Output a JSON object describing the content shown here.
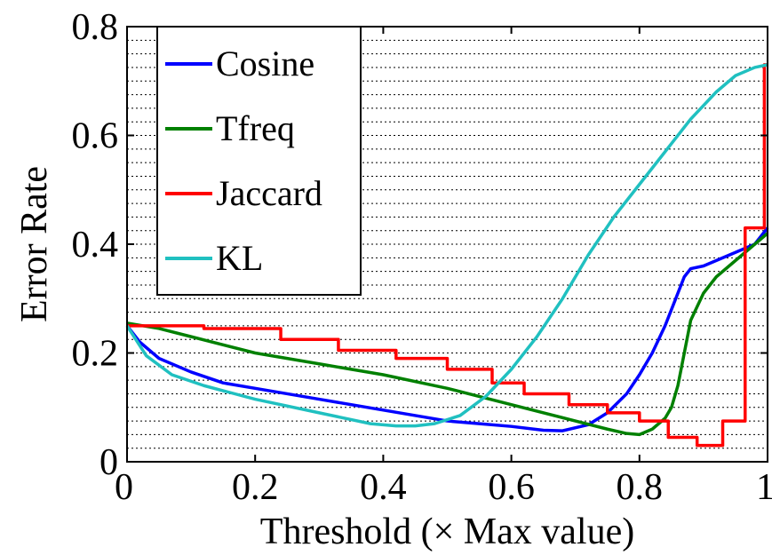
{
  "chart_data": {
    "type": "line",
    "title": "",
    "xlabel": "Threshold (×  Max value)",
    "ylabel": "Error Rate",
    "xlim": [
      0,
      1
    ],
    "ylim": [
      0,
      0.8
    ],
    "xticks": [
      "0",
      "0.2",
      "0.4",
      "0.6",
      "0.8",
      "1"
    ],
    "yticks": [
      "0",
      "0.2",
      "0.4",
      "0.6",
      "0.8"
    ],
    "grid": "horizontal dotted",
    "legend_position": "top-left",
    "series": [
      {
        "name": "Cosine",
        "color": "#0000ff",
        "step": false,
        "x": [
          0,
          0.02,
          0.05,
          0.1,
          0.15,
          0.2,
          0.3,
          0.4,
          0.5,
          0.55,
          0.6,
          0.65,
          0.68,
          0.72,
          0.75,
          0.78,
          0.8,
          0.82,
          0.84,
          0.86,
          0.87,
          0.88,
          0.9,
          0.92,
          0.94,
          0.96,
          0.98,
          1.0
        ],
        "y": [
          0.25,
          0.22,
          0.19,
          0.165,
          0.145,
          0.135,
          0.115,
          0.095,
          0.075,
          0.07,
          0.065,
          0.058,
          0.057,
          0.068,
          0.09,
          0.125,
          0.16,
          0.2,
          0.25,
          0.31,
          0.34,
          0.355,
          0.36,
          0.37,
          0.38,
          0.39,
          0.4,
          0.43
        ]
      },
      {
        "name": "Tfreq",
        "color": "#008000",
        "step": false,
        "x": [
          0,
          0.05,
          0.1,
          0.2,
          0.3,
          0.4,
          0.5,
          0.6,
          0.7,
          0.75,
          0.78,
          0.8,
          0.82,
          0.84,
          0.85,
          0.86,
          0.87,
          0.88,
          0.9,
          0.92,
          0.95,
          0.97,
          1.0
        ],
        "y": [
          0.255,
          0.245,
          0.23,
          0.2,
          0.18,
          0.16,
          0.135,
          0.105,
          0.075,
          0.06,
          0.052,
          0.05,
          0.06,
          0.08,
          0.1,
          0.14,
          0.2,
          0.26,
          0.31,
          0.34,
          0.37,
          0.39,
          0.42
        ]
      },
      {
        "name": "Jaccard",
        "color": "#ff0000",
        "step": true,
        "x": [
          0,
          0.12,
          0.24,
          0.33,
          0.42,
          0.5,
          0.57,
          0.62,
          0.69,
          0.75,
          0.8,
          0.845,
          0.89,
          0.93,
          0.965,
          0.995,
          1.0
        ],
        "y": [
          0.25,
          0.245,
          0.225,
          0.205,
          0.19,
          0.17,
          0.145,
          0.125,
          0.105,
          0.09,
          0.075,
          0.045,
          0.03,
          0.075,
          0.43,
          0.73,
          0.73
        ]
      },
      {
        "name": "KL",
        "color": "#20c0c0",
        "step": false,
        "x": [
          0,
          0.03,
          0.07,
          0.12,
          0.2,
          0.3,
          0.38,
          0.42,
          0.45,
          0.48,
          0.52,
          0.56,
          0.6,
          0.64,
          0.68,
          0.72,
          0.76,
          0.8,
          0.84,
          0.88,
          0.92,
          0.95,
          0.98,
          1.0
        ],
        "y": [
          0.25,
          0.195,
          0.16,
          0.14,
          0.115,
          0.09,
          0.07,
          0.066,
          0.066,
          0.07,
          0.085,
          0.12,
          0.17,
          0.23,
          0.3,
          0.38,
          0.45,
          0.51,
          0.57,
          0.63,
          0.68,
          0.71,
          0.725,
          0.73
        ]
      }
    ]
  }
}
